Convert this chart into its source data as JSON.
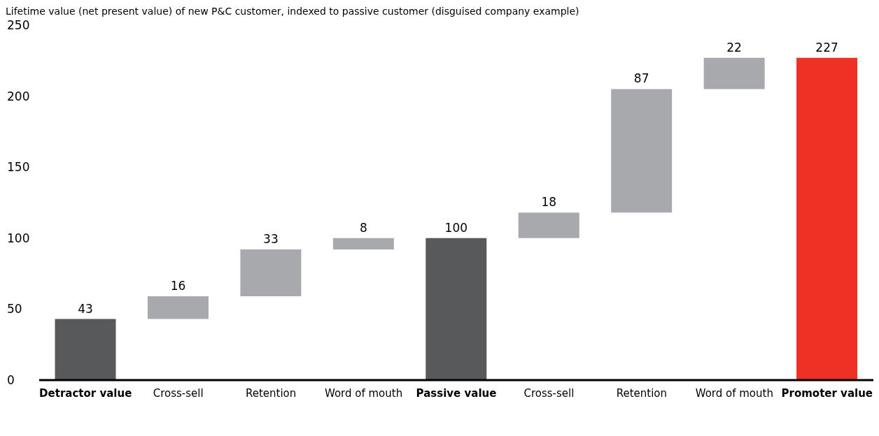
{
  "chart_data": {
    "type": "bar",
    "title": "Lifetime value (net present value) of new P&C customer, indexed to passive customer (disguised company example)",
    "categories": [
      "Detractor value",
      "Cross-sell",
      "Retention",
      "Word of mouth",
      "Passive value",
      "Cross-sell",
      "Retention",
      "Word of mouth",
      "Promoter value"
    ],
    "values": [
      43,
      16,
      33,
      8,
      100,
      18,
      87,
      22,
      227
    ],
    "base": [
      0,
      43,
      59,
      92,
      0,
      100,
      118,
      205,
      0
    ],
    "colors": [
      "#58595b",
      "#a7a9ac",
      "#a7a9ac",
      "#a7a9ac",
      "#58595b",
      "#a7a9ac",
      "#a7a9ac",
      "#a7a9ac",
      "#ee3124"
    ],
    "ylim": [
      0,
      250
    ],
    "yticks": [
      0,
      50,
      100,
      150,
      200,
      250
    ],
    "grid": false,
    "data_labels": true
  }
}
